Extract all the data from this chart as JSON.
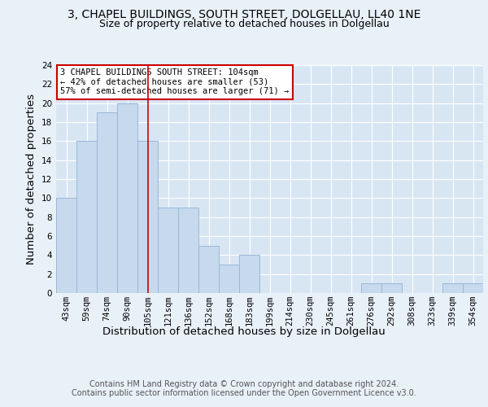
{
  "title": "3, CHAPEL BUILDINGS, SOUTH STREET, DOLGELLAU, LL40 1NE",
  "subtitle": "Size of property relative to detached houses in Dolgellau",
  "xlabel": "Distribution of detached houses by size in Dolgellau",
  "ylabel": "Number of detached properties",
  "bar_labels": [
    "43sqm",
    "59sqm",
    "74sqm",
    "90sqm",
    "105sqm",
    "121sqm",
    "136sqm",
    "152sqm",
    "168sqm",
    "183sqm",
    "199sqm",
    "214sqm",
    "230sqm",
    "245sqm",
    "261sqm",
    "276sqm",
    "292sqm",
    "308sqm",
    "323sqm",
    "339sqm",
    "354sqm"
  ],
  "bar_values": [
    10,
    16,
    19,
    20,
    16,
    9,
    9,
    5,
    3,
    4,
    0,
    0,
    0,
    0,
    0,
    1,
    1,
    0,
    0,
    1,
    1
  ],
  "bar_color": "#c6d9ed",
  "bar_edgecolor": "#9ab8d8",
  "vline_x": 4,
  "vline_color": "#cc0000",
  "annotation_text": "3 CHAPEL BUILDINGS SOUTH STREET: 104sqm\n← 42% of detached houses are smaller (53)\n57% of semi-detached houses are larger (71) →",
  "annotation_box_edgecolor": "#cc0000",
  "annotation_box_facecolor": "#ffffff",
  "ylim": [
    0,
    24
  ],
  "yticks": [
    0,
    2,
    4,
    6,
    8,
    10,
    12,
    14,
    16,
    18,
    20,
    22,
    24
  ],
  "footer_text": "Contains HM Land Registry data © Crown copyright and database right 2024.\nContains public sector information licensed under the Open Government Licence v3.0.",
  "background_color": "#e8f0f8",
  "plot_background": "#d8e6f4",
  "grid_color": "#ffffff",
  "title_fontsize": 10,
  "subtitle_fontsize": 9,
  "axis_label_fontsize": 9.5,
  "tick_fontsize": 7.5,
  "footer_fontsize": 7,
  "annotation_fontsize": 7.5
}
